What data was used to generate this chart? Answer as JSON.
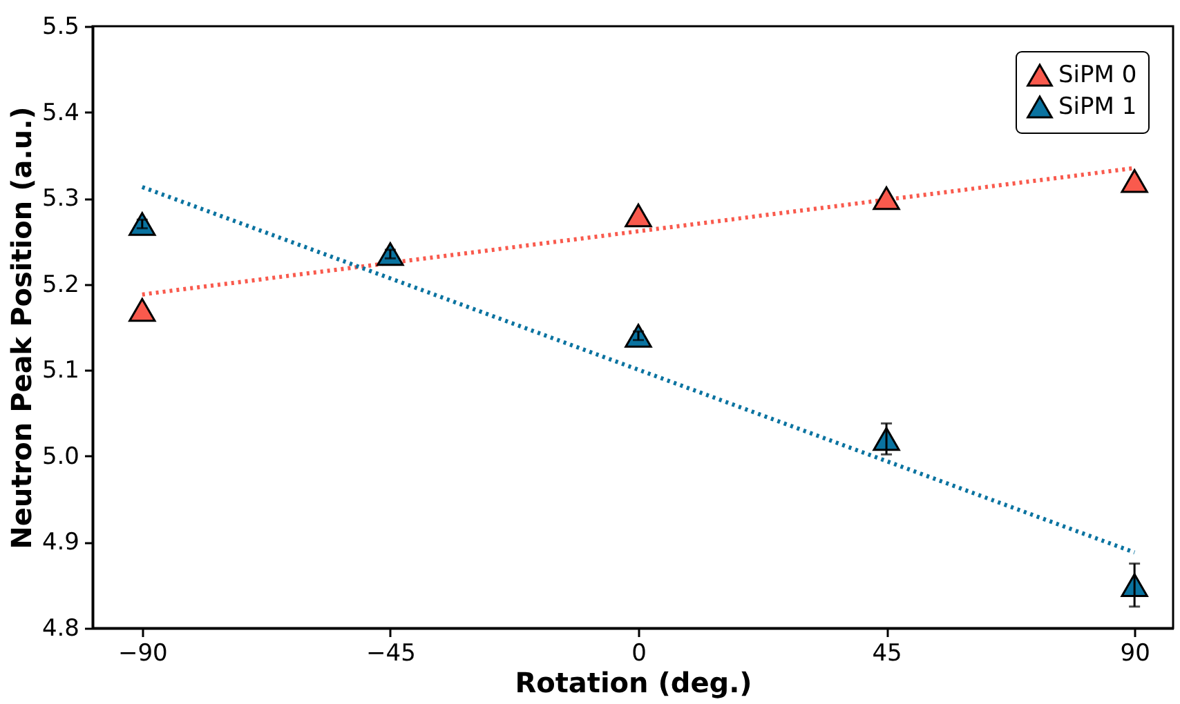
{
  "chart_data": {
    "type": "scatter",
    "xlabel": "Rotation (deg.)",
    "ylabel": "Neutron Peak Position (a.u.)",
    "xlim": [
      -99,
      97
    ],
    "xticks": [
      {
        "value": -90,
        "label": "−90"
      },
      {
        "value": -45,
        "label": "−45"
      },
      0,
      45,
      90
    ],
    "ylim": [
      4.8,
      5.5
    ],
    "yticks": [
      {
        "value": 4.8,
        "label": "4.8"
      },
      {
        "value": 4.9,
        "label": "4.9"
      },
      {
        "value": 5.0,
        "label": "5.0"
      },
      {
        "value": 5.1,
        "label": "5.1"
      },
      {
        "value": 5.2,
        "label": "5.2"
      },
      {
        "value": 5.3,
        "label": "5.3"
      },
      {
        "value": 5.4,
        "label": "5.4"
      },
      {
        "value": 5.5,
        "label": "5.5"
      }
    ],
    "legend": "top right",
    "grid": false,
    "marker": "triangle",
    "series": [
      {
        "type": "line",
        "color": "#f95a4d",
        "line_style": "dotted",
        "marker": "none",
        "x": [
          -90,
          90
        ],
        "values": [
          5.188,
          5.335
        ]
      },
      {
        "type": "line",
        "color": "#0a73a0",
        "line_style": "dotted",
        "marker": "none",
        "x": [
          -90,
          90
        ],
        "values": [
          5.313,
          4.888
        ]
      },
      {
        "name": "SiPM 0",
        "color": "#f95a4d",
        "x": [
          -90,
          -45,
          0,
          45,
          90
        ],
        "values": [
          5.17,
          null,
          5.28,
          5.3,
          5.32
        ]
      },
      {
        "name": "SiPM 1",
        "color": "#0a73a0",
        "x": [
          -90,
          -45,
          0,
          45,
          90
        ],
        "values": [
          5.27,
          5.235,
          5.14,
          5.02,
          4.85
        ],
        "errors": [
          0.005,
          0.005,
          0.005,
          0.018,
          0.025
        ]
      }
    ]
  }
}
